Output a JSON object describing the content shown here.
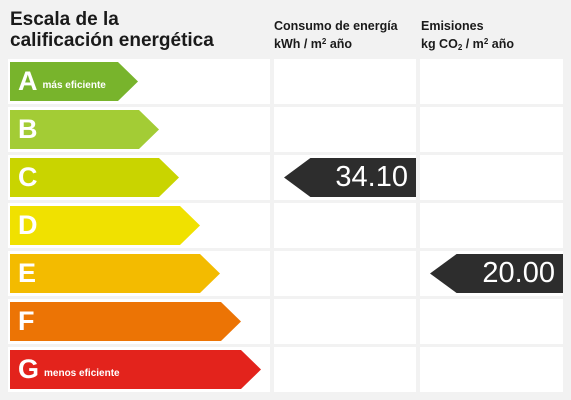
{
  "title": {
    "line1": "Escala de la",
    "line2": "calificación energética"
  },
  "columns": {
    "consumo": {
      "line1": "Consumo de energía",
      "unit_pre": "kWh / m",
      "unit_sup": "2",
      "unit_post": " año"
    },
    "emisiones": {
      "line1": "Emisiones",
      "unit_pre": "kg CO",
      "unit_sub": "2",
      "unit_mid": " / m",
      "unit_sup": "2",
      "unit_post": " año"
    }
  },
  "ratings": [
    {
      "letter": "A",
      "desc": "más eficiente",
      "color": "#78b42c"
    },
    {
      "letter": "B",
      "desc": "",
      "color": "#a3cc35"
    },
    {
      "letter": "C",
      "desc": "",
      "color": "#c9d400"
    },
    {
      "letter": "D",
      "desc": "",
      "color": "#f0e100"
    },
    {
      "letter": "E",
      "desc": "",
      "color": "#f3bb00"
    },
    {
      "letter": "F",
      "desc": "",
      "color": "#ec7405"
    },
    {
      "letter": "G",
      "desc": "menos eficiente",
      "color": "#e3231c"
    }
  ],
  "consumo_value": {
    "value": "34.10",
    "rating": "C"
  },
  "emisiones_value": {
    "value": "20.00",
    "rating": "E"
  }
}
